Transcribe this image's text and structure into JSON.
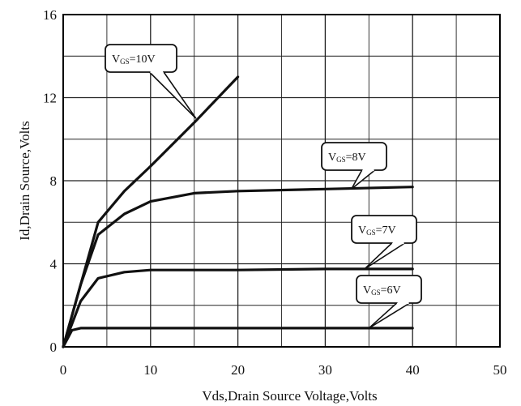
{
  "chart_data": {
    "type": "line",
    "title": "",
    "xlabel": "Vds,Drain Source Voltage,Volts",
    "ylabel": "Id,Drain Source,Volts",
    "xlim": [
      0,
      50
    ],
    "ylim": [
      0,
      16
    ],
    "x_ticks": [
      "0",
      "10",
      "20",
      "30",
      "40",
      "50"
    ],
    "y_ticks": [
      "0",
      "4",
      "8",
      "12",
      "16"
    ],
    "grid": true,
    "series": [
      {
        "name": "VGS=10V",
        "label_main": "V",
        "label_sub": "GS",
        "label_value": "=10V",
        "points": [
          [
            0,
            0
          ],
          [
            4,
            6
          ],
          [
            7,
            7.5
          ],
          [
            10,
            8.7
          ],
          [
            15,
            10.8
          ],
          [
            20,
            13
          ]
        ]
      },
      {
        "name": "VGS=8V",
        "label_main": "V",
        "label_sub": "GS",
        "label_value": "=8V",
        "points": [
          [
            0,
            0
          ],
          [
            2,
            3
          ],
          [
            4,
            5.4
          ],
          [
            7,
            6.4
          ],
          [
            10,
            7
          ],
          [
            15,
            7.4
          ],
          [
            20,
            7.5
          ],
          [
            30,
            7.6
          ],
          [
            40,
            7.7
          ]
        ]
      },
      {
        "name": "VGS=7V",
        "label_main": "V",
        "label_sub": "GS",
        "label_value": "=7V",
        "points": [
          [
            0,
            0
          ],
          [
            2,
            2.2
          ],
          [
            4,
            3.3
          ],
          [
            7,
            3.6
          ],
          [
            10,
            3.7
          ],
          [
            20,
            3.7
          ],
          [
            30,
            3.75
          ],
          [
            40,
            3.75
          ]
        ]
      },
      {
        "name": "VGS=6V",
        "label_main": "V",
        "label_sub": "GS",
        "label_value": "=6V",
        "points": [
          [
            0,
            0
          ],
          [
            1,
            0.8
          ],
          [
            2,
            0.9
          ],
          [
            10,
            0.9
          ],
          [
            20,
            0.9
          ],
          [
            30,
            0.9
          ],
          [
            40,
            0.9
          ]
        ]
      }
    ]
  }
}
